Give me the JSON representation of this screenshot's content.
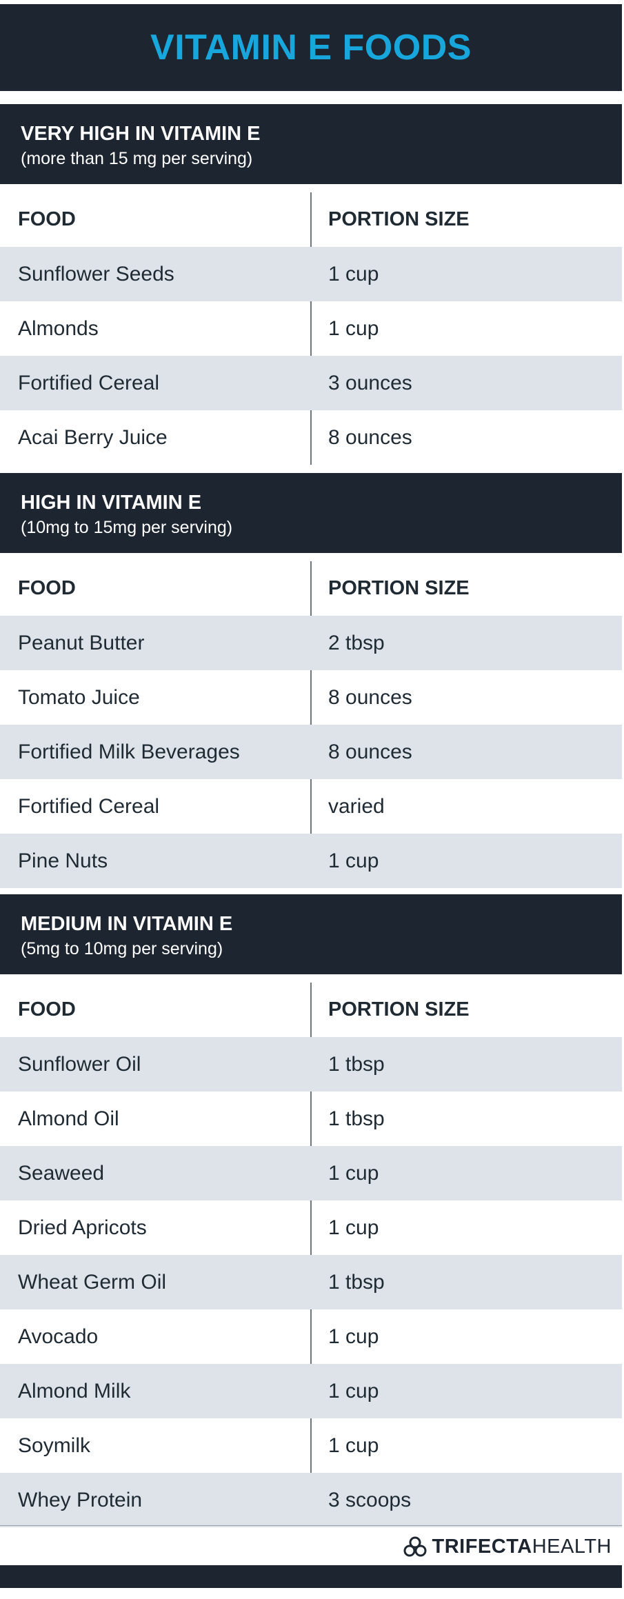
{
  "title": "VITAMIN E FOODS",
  "sections": [
    {
      "title": "VERY HIGH IN VITAMIN E",
      "subtitle": "(more than 15 mg per serving)",
      "col_food": "FOOD",
      "col_portion": "PORTION SIZE",
      "rows": [
        {
          "food": "Sunflower Seeds",
          "portion": "1 cup"
        },
        {
          "food": "Almonds",
          "portion": "1 cup"
        },
        {
          "food": "Fortified Cereal",
          "portion": "3 ounces"
        },
        {
          "food": "Acai Berry Juice",
          "portion": "8 ounces"
        }
      ]
    },
    {
      "title": "HIGH IN VITAMIN E",
      "subtitle": "(10mg to 15mg per serving)",
      "col_food": "FOOD",
      "col_portion": "PORTION SIZE",
      "rows": [
        {
          "food": "Peanut Butter",
          "portion": "2 tbsp"
        },
        {
          "food": " Tomato Juice",
          "portion": "8 ounces"
        },
        {
          "food": "Fortified Milk Beverages",
          "portion": "8 ounces"
        },
        {
          "food": "Fortified Cereal",
          "portion": "varied"
        },
        {
          "food": "Pine Nuts",
          "portion": "1 cup"
        }
      ]
    },
    {
      "title": "MEDIUM IN VITAMIN E",
      "subtitle": "(5mg to 10mg per serving)",
      "col_food": "FOOD",
      "col_portion": "PORTION SIZE",
      "rows": [
        {
          "food": " Sunflower Oil",
          "portion": "1 tbsp"
        },
        {
          "food": "Almond Oil",
          "portion": "1 tbsp"
        },
        {
          "food": "Seaweed",
          "portion": "1 cup"
        },
        {
          "food": "Dried Apricots",
          "portion": "1 cup"
        },
        {
          "food": "Wheat Germ Oil",
          "portion": "1 tbsp"
        },
        {
          "food": "Avocado",
          "portion": "1 cup"
        },
        {
          "food": "Almond Milk",
          "portion": "1 cup"
        },
        {
          "food": "Soymilk",
          "portion": "1 cup"
        },
        {
          "food": "Whey Protein",
          "portion": "3 scoops"
        }
      ]
    }
  ],
  "brand": {
    "bold": "TRIFECTA",
    "light": "HEALTH",
    "icon": "trifecta-logo-icon"
  },
  "colors": {
    "dark": "#1d2630",
    "accent": "#17a7dc",
    "shade": "#dde3e9"
  }
}
